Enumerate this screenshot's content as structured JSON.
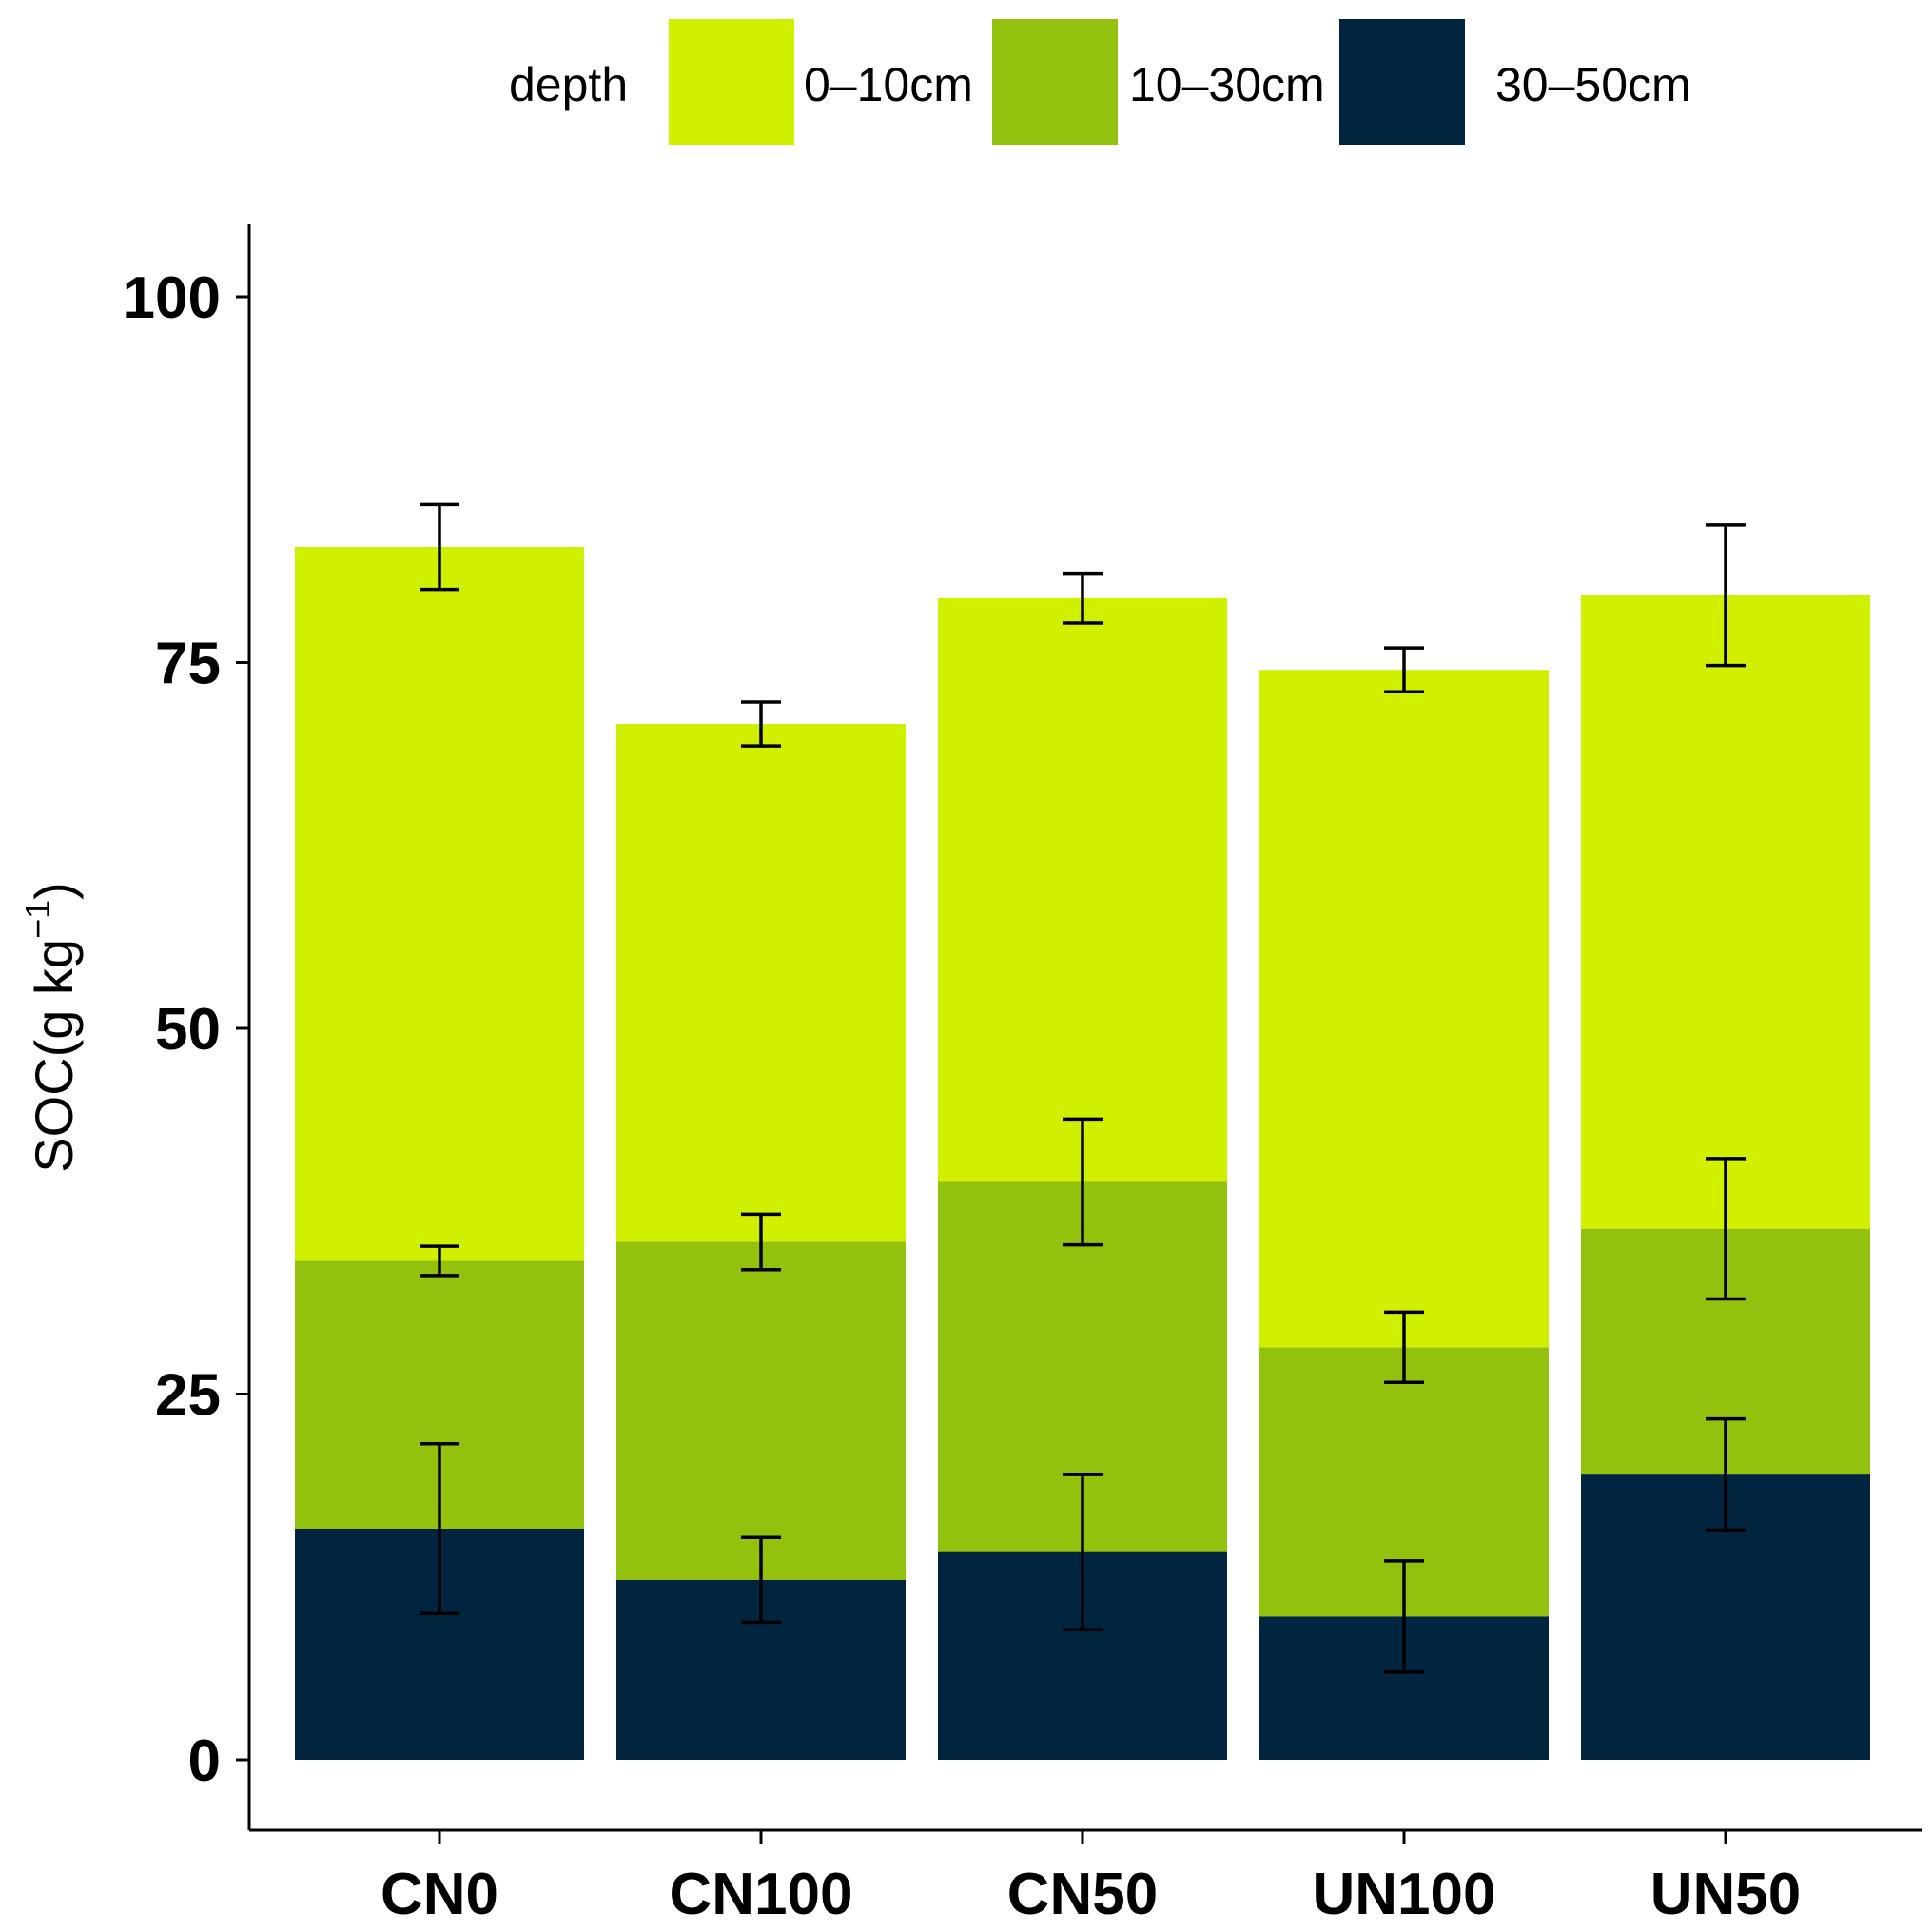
{
  "chart_data": {
    "type": "bar",
    "stacked": true,
    "categories": [
      "CN0",
      "CN100",
      "CN50",
      "UN100",
      "UN50"
    ],
    "series": [
      {
        "name": "30–50cm",
        "color": "#01243f",
        "values": [
          15.8,
          12.3,
          14.2,
          9.8,
          19.5
        ],
        "errors": [
          5.8,
          2.9,
          5.3,
          3.8,
          3.8
        ]
      },
      {
        "name": "10–30cm",
        "color": "#92c10e",
        "values": [
          18.3,
          23.1,
          25.3,
          18.4,
          16.8
        ],
        "errors": [
          1.0,
          1.9,
          4.3,
          2.4,
          4.8
        ]
      },
      {
        "name": "0–10cm",
        "color": "#d1f000",
        "values": [
          48.8,
          35.4,
          39.9,
          46.3,
          43.3
        ],
        "errors": [
          2.9,
          1.5,
          1.7,
          1.5,
          4.8
        ]
      }
    ],
    "title": "",
    "xlabel": "",
    "ylabel": "SOC(g kg",
    "ylabel_superscript": "−1",
    "ylabel_close": ")",
    "yticks": [
      "0",
      "25",
      "50",
      "75",
      "100"
    ],
    "ylim": [
      0,
      105
    ],
    "legend": {
      "title": "depth",
      "position": "top",
      "entries": [
        "0–10cm",
        "10–30cm",
        "30–50cm"
      ]
    },
    "grid": false
  }
}
